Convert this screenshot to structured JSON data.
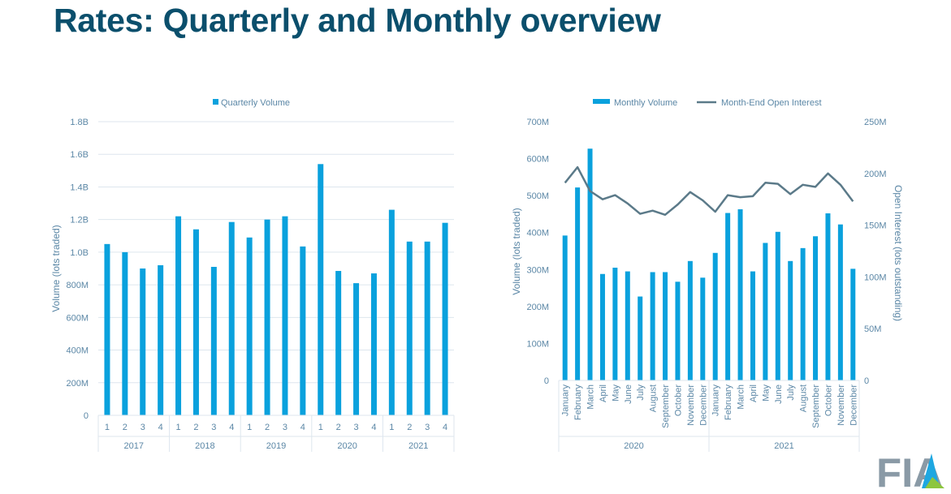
{
  "page": {
    "title": "Rates: Quarterly and Monthly overview",
    "logo_text": "FIA"
  },
  "colors": {
    "title": "#0b4f6c",
    "bar": "#0aa1dd",
    "line": "#5b7a89",
    "axis_text": "#5b87a6",
    "grid": "#dde6ee",
    "logo_gray": "#8a9aa6",
    "logo_blue": "#1ea7e1",
    "logo_green": "#8dc63f"
  },
  "chart_data": [
    {
      "type": "bar",
      "title": "",
      "legend": [
        "Quarterly Volume"
      ],
      "legend_position": "top",
      "ylabel": "Volume (lots traded)",
      "ylim": [
        0,
        1800000000
      ],
      "yticks": [
        "0",
        "200M",
        "400M",
        "600M",
        "800M",
        "1.0B",
        "1.2B",
        "1.4B",
        "1.6B",
        "1.8B"
      ],
      "grid": true,
      "groups": [
        {
          "label": "2017",
          "categories": [
            "1",
            "2",
            "3",
            "4"
          ]
        },
        {
          "label": "2018",
          "categories": [
            "1",
            "2",
            "3",
            "4"
          ]
        },
        {
          "label": "2019",
          "categories": [
            "1",
            "2",
            "3",
            "4"
          ]
        },
        {
          "label": "2020",
          "categories": [
            "1",
            "2",
            "3",
            "4"
          ]
        },
        {
          "label": "2021",
          "categories": [
            "1",
            "2",
            "3",
            "4"
          ]
        }
      ],
      "series": [
        {
          "name": "Quarterly Volume",
          "values": [
            1050000000,
            1000000000,
            900000000,
            920000000,
            1220000000,
            1140000000,
            910000000,
            1185000000,
            1090000000,
            1200000000,
            1220000000,
            1035000000,
            1540000000,
            885000000,
            810000000,
            870000000,
            1260000000,
            1065000000,
            1065000000,
            1180000000
          ]
        }
      ]
    },
    {
      "type": "bar+line",
      "title": "",
      "legend": [
        "Monthly Volume",
        "Month-End Open Interest"
      ],
      "legend_position": "top",
      "ylabel": "Volume (lots traded)",
      "y2label": "Open Interest (lots outstanding)",
      "ylim": [
        0,
        700000000
      ],
      "y2lim": [
        0,
        250000000
      ],
      "yticks": [
        "0",
        "100M",
        "200M",
        "300M",
        "400M",
        "500M",
        "600M",
        "700M"
      ],
      "y2ticks": [
        "0",
        "50M",
        "100M",
        "150M",
        "200M",
        "250M"
      ],
      "grid": false,
      "groups": [
        {
          "label": "2020",
          "categories": [
            "January",
            "February",
            "March",
            "April",
            "May",
            "June",
            "July",
            "August",
            "September",
            "October",
            "November",
            "December"
          ]
        },
        {
          "label": "2021",
          "categories": [
            "January",
            "February",
            "March",
            "April",
            "May",
            "June",
            "July",
            "August",
            "September",
            "October",
            "November",
            "December"
          ]
        }
      ],
      "series": [
        {
          "name": "Monthly Volume",
          "kind": "bar",
          "axis": "left",
          "values": [
            392000000,
            522000000,
            627000000,
            288000000,
            305000000,
            295000000,
            227000000,
            293000000,
            293000000,
            267000000,
            323000000,
            278000000,
            345000000,
            453000000,
            463000000,
            295000000,
            372000000,
            402000000,
            323000000,
            358000000,
            390000000,
            452000000,
            422000000,
            302000000
          ]
        },
        {
          "name": "Month-End Open Interest",
          "kind": "line",
          "axis": "right",
          "values": [
            191000000,
            206000000,
            183000000,
            175000000,
            179000000,
            171000000,
            161000000,
            164000000,
            160000000,
            170000000,
            182000000,
            174000000,
            163000000,
            179000000,
            177000000,
            178000000,
            191000000,
            190000000,
            180000000,
            189000000,
            187000000,
            200000000,
            189000000,
            173000000
          ]
        }
      ]
    }
  ]
}
